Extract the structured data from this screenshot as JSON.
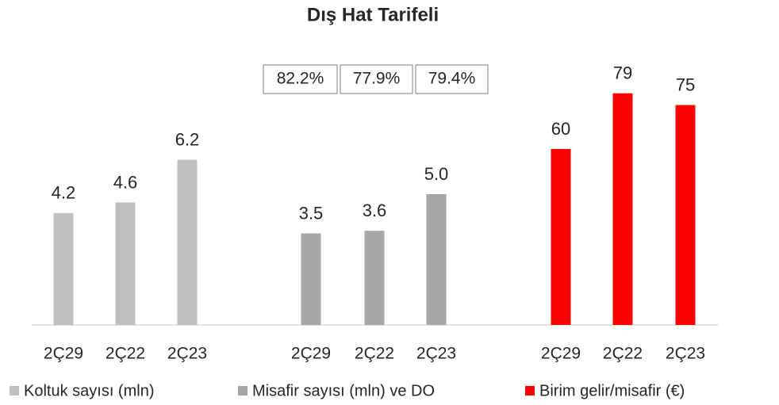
{
  "chart_data": {
    "type": "bar",
    "title": "Dış Hat Tarifeli",
    "series": [
      {
        "name": "Koltuk sayısı (mln)",
        "color": "#c0c0c0",
        "categories": [
          "2Ç29",
          "2Ç22",
          "2Ç23"
        ],
        "values": [
          4.2,
          4.6,
          6.2
        ]
      },
      {
        "name": "Misafir sayısı (mln) ve DO",
        "color": "#a6a6a6",
        "categories": [
          "2Ç29",
          "2Ç22",
          "2Ç23"
        ],
        "values": [
          3.5,
          3.6,
          5.0
        ],
        "value_labels": [
          "3.5",
          "3.6",
          "5.0"
        ]
      },
      {
        "name": "Birim gelir/misafir (€)",
        "color": "#ff0000",
        "categories": [
          "2Ç29",
          "2Ç22",
          "2Ç23"
        ],
        "values": [
          60,
          79,
          75
        ]
      }
    ],
    "load_factor": {
      "values": [
        82.2,
        77.9,
        79.4
      ],
      "value_labels": [
        "82.2%",
        "77.9%",
        "79.4%"
      ]
    }
  }
}
